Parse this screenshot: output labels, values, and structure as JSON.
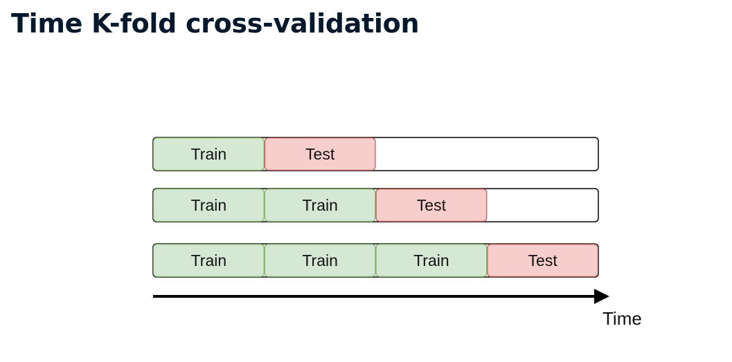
{
  "title": "Time K-fold cross-validation",
  "segment_colors": {
    "train_fill": "#d5e8d4",
    "train_stroke": "#82b366",
    "test_fill": "#f8cecc",
    "test_stroke": "#b85450"
  },
  "folds": [
    {
      "segments": [
        {
          "type": "train",
          "label": "Train"
        },
        {
          "type": "test",
          "label": "Test"
        }
      ]
    },
    {
      "segments": [
        {
          "type": "train",
          "label": "Train"
        },
        {
          "type": "train",
          "label": "Train"
        },
        {
          "type": "test",
          "label": "Test"
        }
      ]
    },
    {
      "segments": [
        {
          "type": "train",
          "label": "Train"
        },
        {
          "type": "train",
          "label": "Train"
        },
        {
          "type": "train",
          "label": "Train"
        },
        {
          "type": "test",
          "label": "Test"
        }
      ]
    }
  ],
  "total_slots": 4,
  "axis": {
    "label": "Time",
    "direction": "right"
  }
}
